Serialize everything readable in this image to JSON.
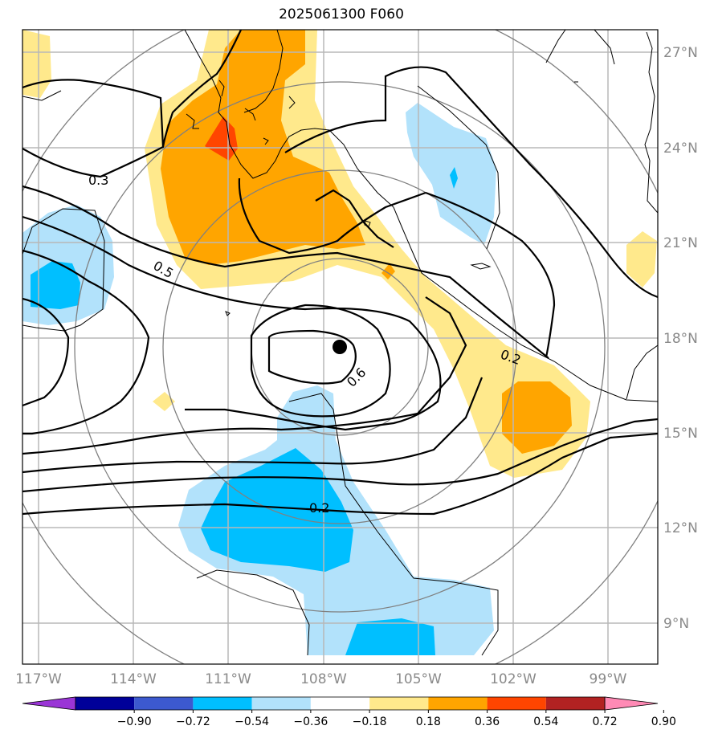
{
  "title": "2025061300 F060",
  "lat_labels": [
    "27°N",
    "24°N",
    "21°N",
    "18°N",
    "15°N",
    "12°N",
    "9°N"
  ],
  "lon_labels": [
    "117°W",
    "114°W",
    "111°W",
    "108°W",
    "105°W",
    "102°W",
    "99°W"
  ],
  "contour_labels": [
    "0.3",
    "0.5",
    "0.6",
    "0.2",
    "0.2"
  ],
  "colorbar": {
    "ticks": [
      "−0.90",
      "−0.72",
      "−0.54",
      "−0.36",
      "−0.18",
      "0.18",
      "0.36",
      "0.54",
      "0.72",
      "0.90"
    ],
    "colors": [
      "#9a35d6",
      "#000099",
      "#3c59cf",
      "#00bfff",
      "#b2e2fb",
      "#ffffff",
      "#ffe98c",
      "#ffa500",
      "#ff4500",
      "#b22222",
      "#ff8ab5"
    ]
  },
  "storm_center": {
    "lon": "107.8°W",
    "lat": "17.7°N"
  },
  "map_colors": {
    "coast": "#000000",
    "grid": "#b8b8b8",
    "range_rings": "#808080"
  }
}
